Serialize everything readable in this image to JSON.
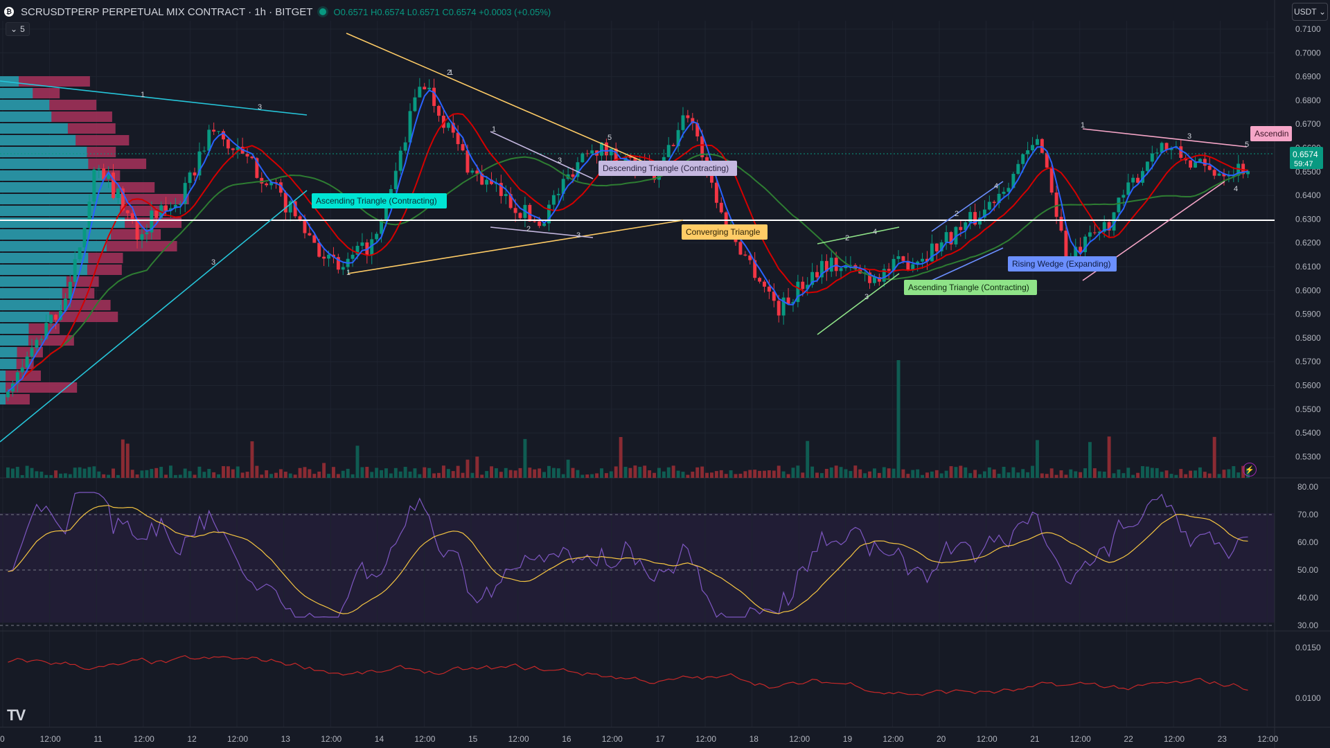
{
  "header": {
    "symbol_title": "SCRUSDTPERP PERPETUAL MIX CONTRACT · 1h · BITGET",
    "open": "O0.6571",
    "high": "H0.6574",
    "low": "L0.6571",
    "close": "C0.6574",
    "change": "+0.0003 (+0.05%)",
    "collapse_label": "5",
    "currency": "USDT"
  },
  "price_axis": [
    "0.7100",
    "0.7000",
    "0.6900",
    "0.6800",
    "0.6700",
    "0.6600",
    "0.6500",
    "0.6400",
    "0.6300",
    "0.6200",
    "0.6100",
    "0.6000",
    "0.5900",
    "0.5800",
    "0.5700",
    "0.5600",
    "0.5500",
    "0.5400",
    "0.5300"
  ],
  "last_price": {
    "price": "0.6574",
    "countdown": "59:47",
    "color": "#089981"
  },
  "rsi_axis": [
    "80.00",
    "70.00",
    "60.00",
    "50.00",
    "40.00",
    "30.00"
  ],
  "indicator_axis": [
    "0.0150",
    "0.0100"
  ],
  "time_axis": [
    "0",
    "12:00",
    "11",
    "12:00",
    "12",
    "12:00",
    "13",
    "12:00",
    "14",
    "12:00",
    "15",
    "12:00",
    "16",
    "12:00",
    "17",
    "12:00",
    "18",
    "12:00",
    "19",
    "12:00",
    "20",
    "12:00",
    "21",
    "12:00",
    "22",
    "12:00",
    "23",
    "12:00"
  ],
  "patterns": [
    {
      "label": "Ascending Triangle (Contracting)",
      "color": "#00e5d4",
      "text_color": "#0c2a33"
    },
    {
      "label": "Descending Triangle (Contracting)",
      "color": "#c5b8e0",
      "text_color": "#2a2340"
    },
    {
      "label": "Converging Triangle",
      "color": "#ffcc66",
      "text_color": "#2b2206"
    },
    {
      "label": "Ascending Triangle (Contracting)",
      "color": "#8fe388",
      "text_color": "#0f2a10"
    },
    {
      "label": "Rising Wedge (Expanding)",
      "color": "#6b8fff",
      "text_color": "#0d1a3d"
    },
    {
      "label": "Ascendin",
      "color": "#f6a6c8",
      "text_color": "#3a1425"
    }
  ],
  "pivot_numbers": [
    "1",
    "2",
    "3",
    "4",
    "5"
  ],
  "colors": {
    "bull": "#089981",
    "bear": "#f23645",
    "background": "#161a25",
    "rsi": "#7e57c2",
    "rsi_ma": "#f5c542"
  }
}
